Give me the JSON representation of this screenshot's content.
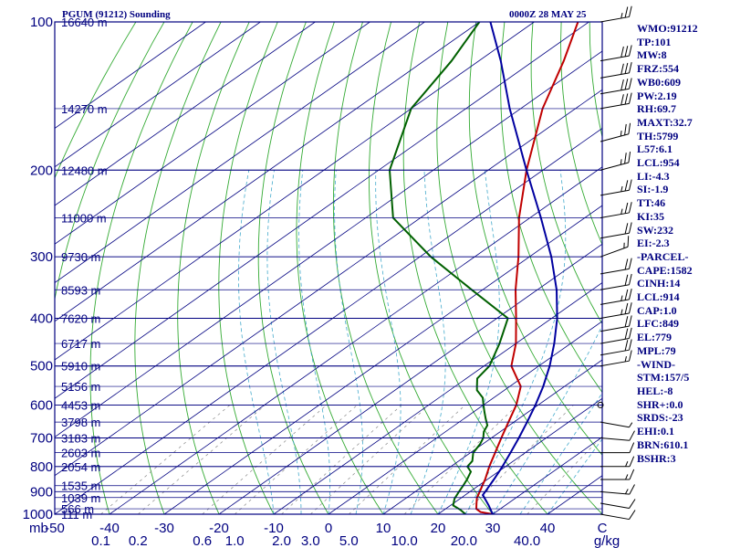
{
  "header": {
    "title": "PGUM (91212) Sounding",
    "time": "0000Z 28 MAY 25"
  },
  "indices": [
    "WMO:91212",
    "TP:101",
    "MW:8",
    "FRZ:554",
    "WB0:609",
    "PW:2.19",
    "RH:69.7",
    "MAXT:32.7",
    "TH:5799",
    "L57:6.1",
    "LCL:954",
    "LI:-4.3",
    "SI:-1.9",
    "TT:46",
    "KI:35",
    "SW:232",
    "EI:-2.3",
    "-PARCEL-",
    "CAPE:1582",
    "CINH:14",
    "LCL:914",
    "CAP:1.0",
    "LFC:849",
    "EL:779",
    "MPL:79",
    "-WIND-",
    "STM:157/5",
    "HEL:-8",
    "SHR+:0.0",
    "SRDS:-23",
    "EHI:0.1",
    "BRN:610.1",
    "BSHR:3"
  ],
  "chart_data": {
    "type": "line",
    "title": "PGUM (91212) Sounding",
    "subtitle": "0000Z 28 MAY 25",
    "xlabel": "",
    "ylabel": "mb",
    "x_unit_label": "g/kg",
    "pressure_levels": [
      {
        "p": 1000,
        "label": "1000"
      },
      {
        "p": 900,
        "label": "900"
      },
      {
        "p": 800,
        "label": "800"
      },
      {
        "p": 700,
        "label": "700"
      },
      {
        "p": 600,
        "label": "600"
      },
      {
        "p": 500,
        "label": "500"
      },
      {
        "p": 400,
        "label": "400"
      },
      {
        "p": 300,
        "label": "300"
      },
      {
        "p": 200,
        "label": "200"
      },
      {
        "p": 100,
        "label": "100"
      }
    ],
    "height_labels": [
      {
        "p": 1000,
        "label": "111 m"
      },
      {
        "p": 975,
        "label": "566 m"
      },
      {
        "p": 925,
        "label": "1039 m"
      },
      {
        "p": 875,
        "label": "1535 m"
      },
      {
        "p": 800,
        "label": "2054 m"
      },
      {
        "p": 750,
        "label": "2603 m"
      },
      {
        "p": 700,
        "label": "3183 m"
      },
      {
        "p": 650,
        "label": "3798 m"
      },
      {
        "p": 600,
        "label": "4453 m"
      },
      {
        "p": 550,
        "label": "5156 m"
      },
      {
        "p": 500,
        "label": "5910 m"
      },
      {
        "p": 450,
        "label": "6717 m"
      },
      {
        "p": 400,
        "label": "7620 m"
      },
      {
        "p": 350,
        "label": "8593 m"
      },
      {
        "p": 300,
        "label": "9730 m"
      },
      {
        "p": 250,
        "label": "11000 m"
      },
      {
        "p": 200,
        "label": "12480 m"
      },
      {
        "p": 150,
        "label": "14270 m"
      },
      {
        "p": 100,
        "label": "16640 m"
      }
    ],
    "temperature_ticks": [
      {
        "t": -50,
        "label": "-50"
      },
      {
        "t": -40,
        "label": "-40"
      },
      {
        "t": -30,
        "label": "-30"
      },
      {
        "t": -20,
        "label": "-20"
      },
      {
        "t": -10,
        "label": "-10"
      },
      {
        "t": 0,
        "label": "0"
      },
      {
        "t": 10,
        "label": "10"
      },
      {
        "t": 20,
        "label": "20"
      },
      {
        "t": 30,
        "label": "30"
      },
      {
        "t": 40,
        "label": "40"
      },
      {
        "t": 50,
        "label": "C"
      }
    ],
    "mixing_ratio_ticks": [
      {
        "w": 0.1,
        "label": "0.1"
      },
      {
        "w": 0.2,
        "label": "0.2"
      },
      {
        "w": 0.6,
        "label": "0.6"
      },
      {
        "w": 1.0,
        "label": "1.0"
      },
      {
        "w": 2.0,
        "label": "2.0"
      },
      {
        "w": 3.0,
        "label": "3.0"
      },
      {
        "w": 5.0,
        "label": "5.0"
      },
      {
        "w": 10.0,
        "label": "10.0"
      },
      {
        "w": 20.0,
        "label": "20.0"
      },
      {
        "w": 40.0,
        "label": "40.0"
      }
    ],
    "temperature_range": [
      -50,
      50
    ],
    "pressure_range": [
      1000,
      100
    ],
    "series": [
      {
        "name": "",
        "color": "#c00000",
        "points": [
          [
            1000,
            30.0
          ],
          [
            990,
            27.2
          ],
          [
            975,
            25.6
          ],
          [
            950,
            24.2
          ],
          [
            925,
            22.8
          ],
          [
            900,
            21.8
          ],
          [
            875,
            20.7
          ],
          [
            850,
            19.6
          ],
          [
            800,
            17.0
          ],
          [
            750,
            14.5
          ],
          [
            700,
            11.8
          ],
          [
            650,
            9.0
          ],
          [
            600,
            6.0
          ],
          [
            550,
            2.0
          ],
          [
            500,
            -5.0
          ],
          [
            450,
            -10.0
          ],
          [
            400,
            -16.5
          ],
          [
            350,
            -24.0
          ],
          [
            300,
            -32.0
          ],
          [
            250,
            -42.0
          ],
          [
            200,
            -53.0
          ],
          [
            150,
            -66.0
          ],
          [
            120,
            -74.5
          ],
          [
            100,
            -82.0
          ]
        ]
      },
      {
        "name": "",
        "color": "#006000",
        "points": [
          [
            1000,
            25.0
          ],
          [
            980,
            23.0
          ],
          [
            960,
            20.5
          ],
          [
            930,
            19.0
          ],
          [
            900,
            18.0
          ],
          [
            875,
            17.2
          ],
          [
            850,
            16.3
          ],
          [
            820,
            15.0
          ],
          [
            800,
            13.0
          ],
          [
            780,
            12.5
          ],
          [
            750,
            10.5
          ],
          [
            720,
            9.5
          ],
          [
            700,
            8.5
          ],
          [
            680,
            7.0
          ],
          [
            660,
            6.0
          ],
          [
            640,
            4.0
          ],
          [
            620,
            2.0
          ],
          [
            600,
            0.0
          ],
          [
            580,
            -2.0
          ],
          [
            560,
            -5.0
          ],
          [
            550,
            -6.0
          ],
          [
            530,
            -8.0
          ],
          [
            500,
            -9.0
          ],
          [
            450,
            -13.0
          ],
          [
            400,
            -18.0
          ],
          [
            350,
            -32.0
          ],
          [
            300,
            -48.0
          ],
          [
            250,
            -65.0
          ],
          [
            200,
            -78.0
          ],
          [
            150,
            -90.0
          ],
          [
            120,
            -95.0
          ],
          [
            100,
            -100.0
          ]
        ]
      },
      {
        "name": "",
        "color": "#0000a0",
        "points": [
          [
            1000,
            30.0
          ],
          [
            960,
            27.0
          ],
          [
            914,
            23.2
          ],
          [
            900,
            22.8
          ],
          [
            850,
            21.2
          ],
          [
            800,
            19.4
          ],
          [
            750,
            17.3
          ],
          [
            700,
            15.0
          ],
          [
            650,
            12.4
          ],
          [
            600,
            9.5
          ],
          [
            550,
            6.1
          ],
          [
            500,
            2.0
          ],
          [
            450,
            -3.0
          ],
          [
            400,
            -9.0
          ],
          [
            350,
            -16.5
          ],
          [
            300,
            -26.0
          ],
          [
            250,
            -38.0
          ],
          [
            200,
            -53.0
          ],
          [
            150,
            -72.0
          ],
          [
            120,
            -86.0
          ],
          [
            100,
            -98.0
          ]
        ]
      }
    ],
    "wind_barbs": [
      {
        "p": 1000,
        "dir": 100,
        "spd": 10
      },
      {
        "p": 950,
        "dir": 100,
        "spd": 10
      },
      {
        "p": 900,
        "dir": 95,
        "spd": 15
      },
      {
        "p": 850,
        "dir": 90,
        "spd": 15
      },
      {
        "p": 800,
        "dir": 90,
        "spd": 15
      },
      {
        "p": 750,
        "dir": 90,
        "spd": 10
      },
      {
        "p": 700,
        "dir": 95,
        "spd": 10
      },
      {
        "p": 650,
        "dir": 100,
        "spd": 5
      },
      {
        "p": 600,
        "dir": 0,
        "spd": 0
      },
      {
        "p": 500,
        "dir": 80,
        "spd": 15
      },
      {
        "p": 475,
        "dir": 80,
        "spd": 20
      },
      {
        "p": 450,
        "dir": 80,
        "spd": 20
      },
      {
        "p": 425,
        "dir": 80,
        "spd": 20
      },
      {
        "p": 400,
        "dir": 80,
        "spd": 25
      },
      {
        "p": 375,
        "dir": 80,
        "spd": 25
      },
      {
        "p": 350,
        "dir": 80,
        "spd": 20
      },
      {
        "p": 325,
        "dir": 80,
        "spd": 20
      },
      {
        "p": 300,
        "dir": 70,
        "spd": 15
      },
      {
        "p": 275,
        "dir": 80,
        "spd": 20
      },
      {
        "p": 250,
        "dir": 80,
        "spd": 25
      },
      {
        "p": 225,
        "dir": 80,
        "spd": 25
      },
      {
        "p": 200,
        "dir": 75,
        "spd": 25
      },
      {
        "p": 175,
        "dir": 75,
        "spd": 25
      },
      {
        "p": 150,
        "dir": 80,
        "spd": 30
      },
      {
        "p": 140,
        "dir": 80,
        "spd": 30
      },
      {
        "p": 130,
        "dir": 80,
        "spd": 30
      },
      {
        "p": 120,
        "dir": 80,
        "spd": 30
      },
      {
        "p": 100,
        "dir": 80,
        "spd": 25
      },
      {
        "p": 90,
        "dir": 80,
        "spd": 20
      }
    ]
  }
}
